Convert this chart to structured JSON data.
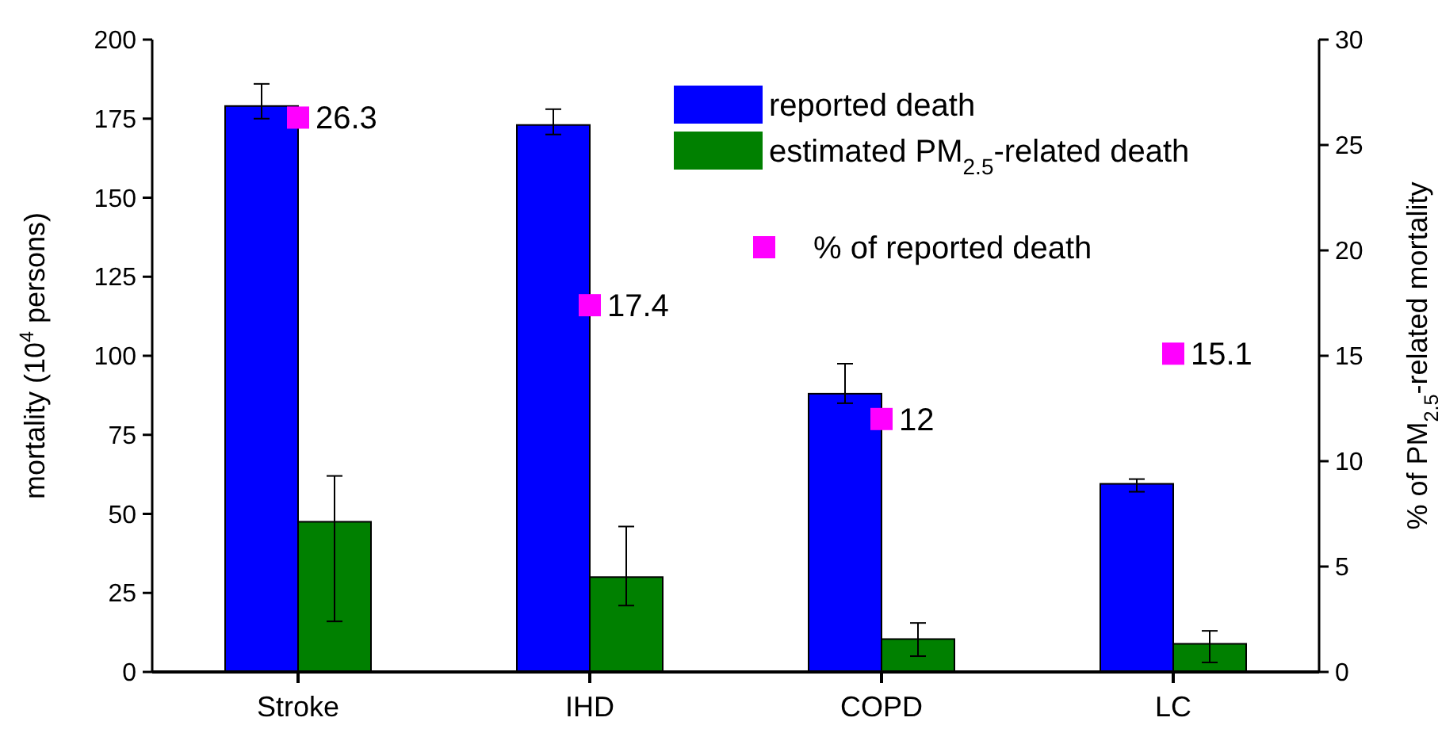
{
  "chart_data": {
    "type": "bar",
    "categories": [
      "Stroke",
      "IHD",
      "COPD",
      "LC"
    ],
    "ylabel": "mortality (10$^{4}$ persons)",
    "y2label": "% of PM$_{2.5}$-related mortality",
    "ylim": [
      0,
      200
    ],
    "yticks": [
      0,
      25,
      50,
      75,
      100,
      125,
      150,
      175,
      200
    ],
    "y2lim": [
      0,
      30
    ],
    "y2ticks": [
      0,
      5,
      10,
      15,
      20,
      25,
      30
    ],
    "legend": "top right",
    "series": [
      {
        "name": "reported death",
        "color": "#0000ff",
        "values": [
          179,
          173,
          88,
          59.5
        ],
        "errors": [
          [
            175,
            186
          ],
          [
            170,
            178
          ],
          [
            85,
            97.5
          ],
          [
            57,
            61
          ]
        ]
      },
      {
        "name": "estimated PM$_{2.5}$-related death",
        "color": "#008000",
        "values": [
          47.5,
          30,
          10.4,
          8.9
        ],
        "errors": [
          [
            16,
            62
          ],
          [
            21,
            46
          ],
          [
            5,
            15.5
          ],
          [
            3,
            13
          ]
        ]
      },
      {
        "name": "% of reported death",
        "type": "scatter",
        "axis": "y2",
        "marker": "square",
        "color": "#ff00ff",
        "x": [
          "Stroke",
          "IHD",
          "COPD",
          "LC"
        ],
        "values": [
          26.3,
          17.4,
          12,
          15.1
        ],
        "data_labels": true
      }
    ]
  }
}
